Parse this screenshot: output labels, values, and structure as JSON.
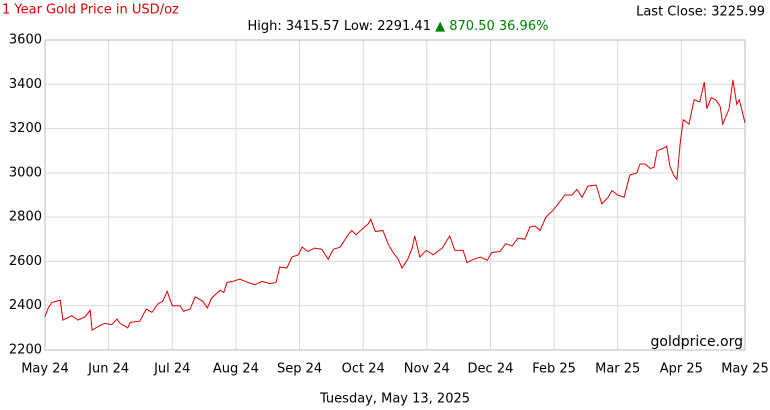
{
  "chart_data": {
    "type": "line",
    "title": "1 Year Gold Price in USD/oz",
    "high_low": "High: 3415.57 Low: 2291.41",
    "change": "▲ 870.50 36.96%",
    "last_close": "Last Close: 3225.99",
    "watermark": "goldprice.org",
    "date": "Tuesday, May 13, 2025",
    "color": "#e00000",
    "grid": true,
    "xlim": [
      0,
      110
    ],
    "xticks": [
      {
        "value": 0,
        "label": "May 24"
      },
      {
        "value": 10,
        "label": "Jun 24"
      },
      {
        "value": 20,
        "label": "Jul 24"
      },
      {
        "value": 30,
        "label": "Aug 24"
      },
      {
        "value": 40,
        "label": "Sep 24"
      },
      {
        "value": 50,
        "label": "Oct 24"
      },
      {
        "value": 60,
        "label": "Nov 24"
      },
      {
        "value": 70,
        "label": "Dec 24"
      },
      {
        "value": 80,
        "label": "Feb 25"
      },
      {
        "value": 90,
        "label": "Mar 25"
      },
      {
        "value": 100,
        "label": "Apr 25"
      },
      {
        "value": 110,
        "label": "May 25"
      }
    ],
    "ylim": [
      2200,
      3600
    ],
    "yticks": [
      2200,
      2400,
      2600,
      2800,
      3000,
      3200,
      3400,
      3600
    ],
    "x": [
      0,
      0.5,
      1.1,
      2.4,
      2.8,
      4.2,
      5.2,
      6.3,
      7.1,
      7.4,
      8.6,
      9.4,
      10.5,
      11.3,
      11.8,
      13.0,
      13.4,
      14.9,
      15.9,
      16.8,
      17.8,
      18.5,
      19.2,
      20.0,
      21.2,
      21.8,
      22.8,
      23.6,
      24.8,
      25.5,
      26.2,
      27.5,
      28.1,
      28.6,
      29.5,
      30.6,
      31.9,
      33.0,
      34.1,
      35.4,
      36.3,
      36.9,
      38.0,
      38.8,
      39.8,
      40.4,
      41.3,
      42.4,
      43.5,
      44.5,
      45.3,
      46.4,
      47.5,
      48.2,
      48.9,
      49.8,
      50.8,
      51.2,
      51.9,
      53.1,
      53.9,
      54.7,
      55.5,
      56.1,
      57.0,
      57.7,
      58.1,
      58.9,
      59.9,
      61.0,
      62.4,
      63.6,
      64.4,
      65.7,
      66.3,
      67.4,
      68.4,
      69.5,
      70.2,
      71.5,
      72.4,
      73.4,
      74.3,
      75.4,
      76.2,
      77.0,
      77.8,
      78.7,
      79.8,
      80.9,
      81.7,
      82.8,
      83.6,
      84.4,
      85.3,
      86.6,
      87.5,
      88.5,
      89.1,
      90.0,
      91.0,
      91.9,
      93.0,
      93.5,
      94.3,
      95.1,
      95.7,
      96.2,
      97.1,
      97.7,
      98.2,
      98.8,
      99.3,
      99.8,
      100.3,
      101.2,
      102.0,
      102.9,
      103.6,
      104.0,
      104.7,
      105.4,
      106.1,
      106.5,
      107.5,
      108.1,
      108.7,
      109.1,
      110
    ],
    "values": [
      2350,
      2390,
      2415,
      2425,
      2335,
      2355,
      2335,
      2350,
      2380,
      2290,
      2310,
      2320,
      2315,
      2340,
      2320,
      2300,
      2325,
      2330,
      2385,
      2370,
      2410,
      2420,
      2465,
      2400,
      2400,
      2375,
      2385,
      2440,
      2420,
      2390,
      2435,
      2470,
      2460,
      2505,
      2510,
      2520,
      2505,
      2495,
      2510,
      2500,
      2505,
      2575,
      2570,
      2620,
      2630,
      2665,
      2645,
      2660,
      2655,
      2610,
      2655,
      2665,
      2715,
      2740,
      2720,
      2745,
      2770,
      2790,
      2735,
      2740,
      2680,
      2640,
      2610,
      2570,
      2610,
      2660,
      2715,
      2620,
      2650,
      2630,
      2660,
      2715,
      2650,
      2650,
      2595,
      2610,
      2620,
      2605,
      2640,
      2645,
      2680,
      2670,
      2705,
      2700,
      2755,
      2760,
      2740,
      2800,
      2830,
      2870,
      2900,
      2900,
      2925,
      2890,
      2940,
      2945,
      2860,
      2890,
      2920,
      2900,
      2890,
      2990,
      3000,
      3040,
      3040,
      3020,
      3025,
      3100,
      3110,
      3120,
      3030,
      2990,
      2970,
      3130,
      3240,
      3220,
      3330,
      3320,
      3410,
      3290,
      3340,
      3330,
      3300,
      3220,
      3290,
      3420,
      3310,
      3330,
      3226
    ]
  }
}
